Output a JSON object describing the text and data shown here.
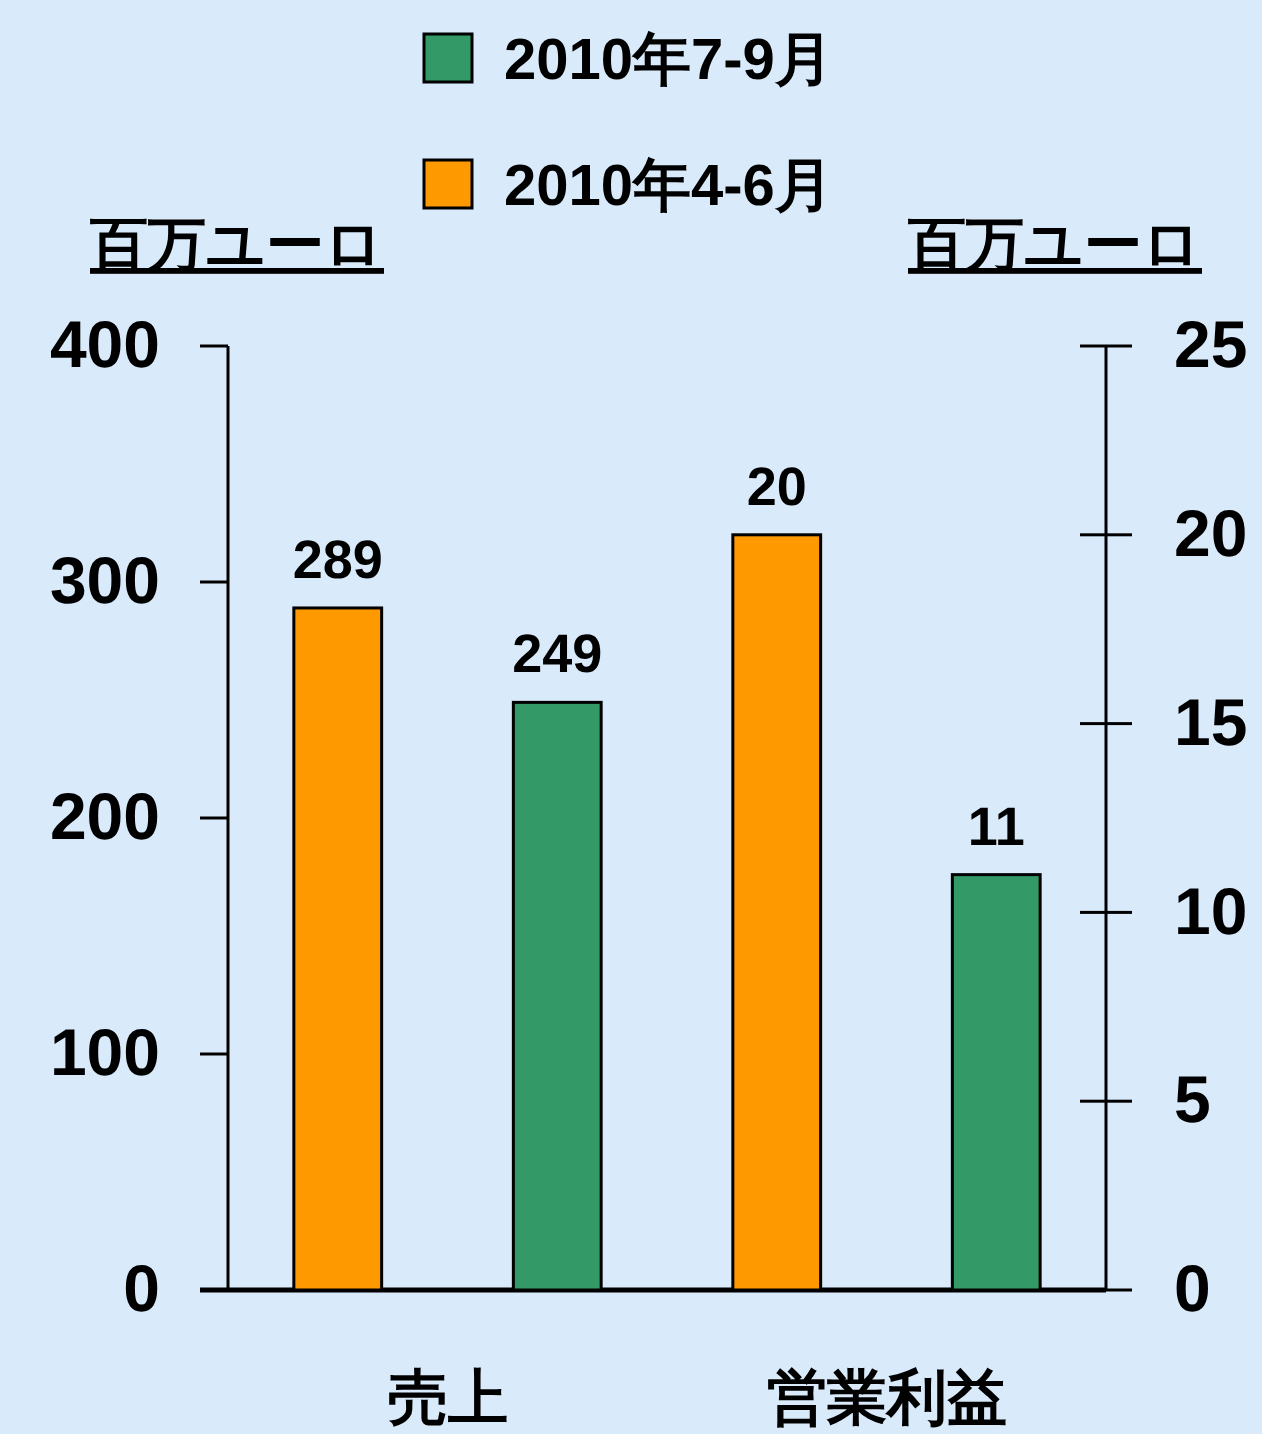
{
  "chart_data": {
    "type": "bar",
    "categories": [
      "売上",
      "営業利益"
    ],
    "ylabel": "百万ユーロ",
    "y2label": "百万ユーロ",
    "series": [
      {
        "name": "2010年4-6月",
        "color": "#ff9900",
        "values": [
          289,
          null
        ]
      },
      {
        "name": "2010年7-9月",
        "color": "#339966",
        "values": [
          249,
          null
        ]
      },
      {
        "color": "#ff9900",
        "values": [
          null,
          20
        ],
        "axis": "y2"
      },
      {
        "color": "#339966",
        "values": [
          null,
          11
        ],
        "axis": "y2"
      }
    ],
    "ylim": [
      0,
      400
    ],
    "yticks": [
      0,
      100,
      200,
      300,
      400
    ],
    "y2lim": [
      0,
      25
    ],
    "y2ticks": [
      0,
      5,
      10,
      15,
      20,
      25
    ],
    "data_labels": true,
    "legend": "top"
  }
}
